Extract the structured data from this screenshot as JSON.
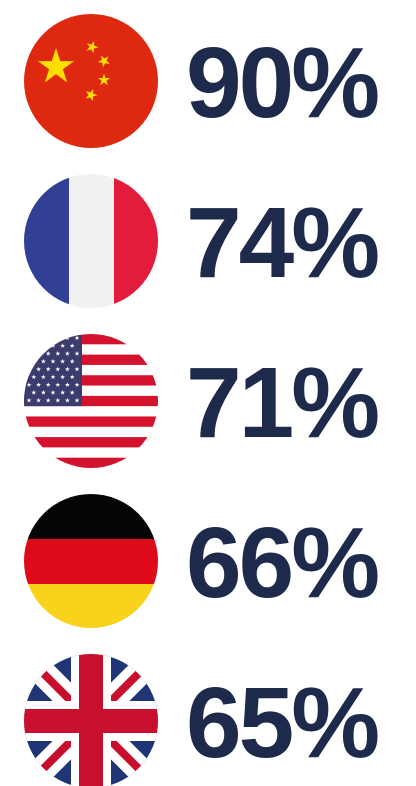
{
  "items": [
    {
      "label": "90%"
    },
    {
      "label": "74%"
    },
    {
      "label": "71%"
    },
    {
      "label": "66%"
    },
    {
      "label": "65%"
    }
  ]
}
